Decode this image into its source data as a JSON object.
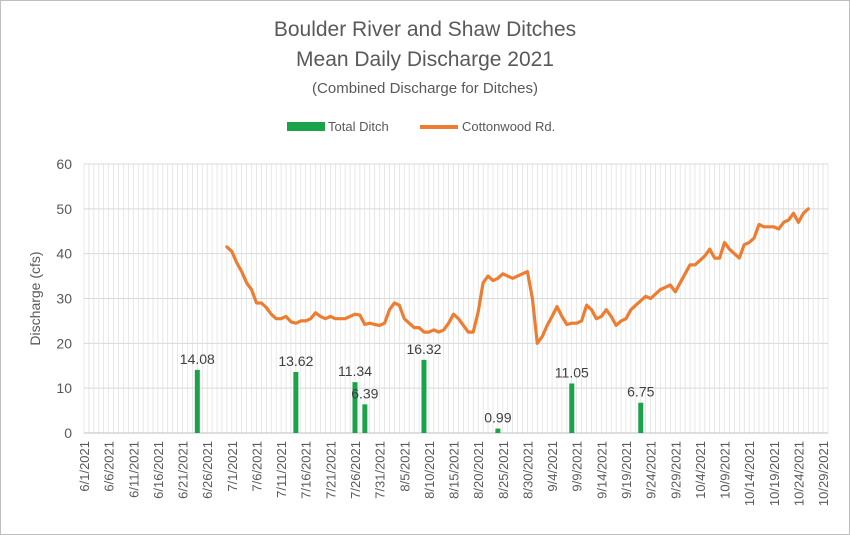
{
  "chart_data": {
    "type": "bar+line",
    "title": "Boulder River and Shaw Ditches",
    "subtitle": "Mean Daily Discharge 2021",
    "subtitle2": "(Combined Discharge for Ditches)",
    "ylabel": "Discharge (cfs)",
    "xlabel": "",
    "ylim": [
      0,
      60
    ],
    "yticks": [
      0,
      10,
      20,
      30,
      40,
      50,
      60
    ],
    "x_start": "6/1/2021",
    "x_end": "10/30/2021",
    "xtick_labels": [
      "6/1/2021",
      "6/6/2021",
      "6/11/2021",
      "6/16/2021",
      "6/21/2021",
      "6/26/2021",
      "7/1/2021",
      "7/6/2021",
      "7/11/2021",
      "7/16/2021",
      "7/21/2021",
      "7/26/2021",
      "7/31/2021",
      "8/5/2021",
      "8/10/2021",
      "8/15/2021",
      "8/20/2021",
      "8/25/2021",
      "8/30/2021",
      "9/4/2021",
      "9/9/2021",
      "9/14/2021",
      "9/19/2021",
      "9/24/2021",
      "9/29/2021",
      "10/4/2021",
      "10/9/2021",
      "10/14/2021",
      "10/19/2021",
      "10/24/2021",
      "10/29/2021"
    ],
    "grid": true,
    "legend_position": "top",
    "series": [
      {
        "name": "Total Ditch",
        "kind": "bar",
        "color": "#1aa34a",
        "points": [
          {
            "date": "6/24/2021",
            "value": 14.08,
            "label": "14.08"
          },
          {
            "date": "7/14/2021",
            "value": 13.62,
            "label": "13.62"
          },
          {
            "date": "7/26/2021",
            "value": 11.34,
            "label": "11.34"
          },
          {
            "date": "7/28/2021",
            "value": 6.39,
            "label": "6.39"
          },
          {
            "date": "8/9/2021",
            "value": 16.32,
            "label": "16.32"
          },
          {
            "date": "8/24/2021",
            "value": 0.99,
            "label": "0.99"
          },
          {
            "date": "9/8/2021",
            "value": 11.05,
            "label": "11.05"
          },
          {
            "date": "9/22/2021",
            "value": 6.75,
            "label": "6.75"
          }
        ]
      },
      {
        "name": "Cottonwood Rd.",
        "kind": "line",
        "color": "#ed7d31",
        "points": [
          {
            "date": "6/30/2021",
            "value": 41.5
          },
          {
            "date": "7/1/2021",
            "value": 40.5
          },
          {
            "date": "7/2/2021",
            "value": 38.0
          },
          {
            "date": "7/3/2021",
            "value": 36.0
          },
          {
            "date": "7/4/2021",
            "value": 33.5
          },
          {
            "date": "7/5/2021",
            "value": 32.0
          },
          {
            "date": "7/6/2021",
            "value": 29.0
          },
          {
            "date": "7/7/2021",
            "value": 29.0
          },
          {
            "date": "7/8/2021",
            "value": 28.0
          },
          {
            "date": "7/9/2021",
            "value": 26.5
          },
          {
            "date": "7/10/2021",
            "value": 25.5
          },
          {
            "date": "7/11/2021",
            "value": 25.5
          },
          {
            "date": "7/12/2021",
            "value": 26.0
          },
          {
            "date": "7/13/2021",
            "value": 24.8
          },
          {
            "date": "7/14/2021",
            "value": 24.5
          },
          {
            "date": "7/15/2021",
            "value": 25.0
          },
          {
            "date": "7/16/2021",
            "value": 25.0
          },
          {
            "date": "7/17/2021",
            "value": 25.5
          },
          {
            "date": "7/18/2021",
            "value": 26.8
          },
          {
            "date": "7/19/2021",
            "value": 26.0
          },
          {
            "date": "7/20/2021",
            "value": 25.5
          },
          {
            "date": "7/21/2021",
            "value": 26.0
          },
          {
            "date": "7/22/2021",
            "value": 25.5
          },
          {
            "date": "7/23/2021",
            "value": 25.5
          },
          {
            "date": "7/24/2021",
            "value": 25.5
          },
          {
            "date": "7/25/2021",
            "value": 26.0
          },
          {
            "date": "7/26/2021",
            "value": 26.5
          },
          {
            "date": "7/27/2021",
            "value": 26.3
          },
          {
            "date": "7/28/2021",
            "value": 24.2
          },
          {
            "date": "7/29/2021",
            "value": 24.5
          },
          {
            "date": "7/30/2021",
            "value": 24.2
          },
          {
            "date": "7/31/2021",
            "value": 24.0
          },
          {
            "date": "8/1/2021",
            "value": 24.5
          },
          {
            "date": "8/2/2021",
            "value": 27.5
          },
          {
            "date": "8/3/2021",
            "value": 29.0
          },
          {
            "date": "8/4/2021",
            "value": 28.5
          },
          {
            "date": "8/5/2021",
            "value": 25.5
          },
          {
            "date": "8/6/2021",
            "value": 24.5
          },
          {
            "date": "8/7/2021",
            "value": 23.5
          },
          {
            "date": "8/8/2021",
            "value": 23.5
          },
          {
            "date": "8/9/2021",
            "value": 22.5
          },
          {
            "date": "8/10/2021",
            "value": 22.5
          },
          {
            "date": "8/11/2021",
            "value": 23.0
          },
          {
            "date": "8/12/2021",
            "value": 22.5
          },
          {
            "date": "8/13/2021",
            "value": 23.0
          },
          {
            "date": "8/14/2021",
            "value": 24.5
          },
          {
            "date": "8/15/2021",
            "value": 26.5
          },
          {
            "date": "8/16/2021",
            "value": 25.5
          },
          {
            "date": "8/17/2021",
            "value": 24.0
          },
          {
            "date": "8/18/2021",
            "value": 22.5
          },
          {
            "date": "8/19/2021",
            "value": 22.5
          },
          {
            "date": "8/20/2021",
            "value": 27.0
          },
          {
            "date": "8/21/2021",
            "value": 33.5
          },
          {
            "date": "8/22/2021",
            "value": 35.0
          },
          {
            "date": "8/23/2021",
            "value": 34.0
          },
          {
            "date": "8/24/2021",
            "value": 34.5
          },
          {
            "date": "8/25/2021",
            "value": 35.5
          },
          {
            "date": "8/26/2021",
            "value": 35.0
          },
          {
            "date": "8/27/2021",
            "value": 34.5
          },
          {
            "date": "8/28/2021",
            "value": 35.0
          },
          {
            "date": "8/29/2021",
            "value": 35.5
          },
          {
            "date": "8/30/2021",
            "value": 36.0
          },
          {
            "date": "8/31/2021",
            "value": 30.0
          },
          {
            "date": "9/1/2021",
            "value": 20.0
          },
          {
            "date": "9/2/2021",
            "value": 21.5
          },
          {
            "date": "9/3/2021",
            "value": 24.0
          },
          {
            "date": "9/4/2021",
            "value": 26.0
          },
          {
            "date": "9/5/2021",
            "value": 28.2
          },
          {
            "date": "9/6/2021",
            "value": 26.0
          },
          {
            "date": "9/7/2021",
            "value": 24.2
          },
          {
            "date": "9/8/2021",
            "value": 24.5
          },
          {
            "date": "9/9/2021",
            "value": 24.5
          },
          {
            "date": "9/10/2021",
            "value": 25.0
          },
          {
            "date": "9/11/2021",
            "value": 28.5
          },
          {
            "date": "9/12/2021",
            "value": 27.5
          },
          {
            "date": "9/13/2021",
            "value": 25.5
          },
          {
            "date": "9/14/2021",
            "value": 26.0
          },
          {
            "date": "9/15/2021",
            "value": 27.5
          },
          {
            "date": "9/16/2021",
            "value": 26.0
          },
          {
            "date": "9/17/2021",
            "value": 24.0
          },
          {
            "date": "9/18/2021",
            "value": 25.0
          },
          {
            "date": "9/19/2021",
            "value": 25.5
          },
          {
            "date": "9/20/2021",
            "value": 27.5
          },
          {
            "date": "9/21/2021",
            "value": 28.5
          },
          {
            "date": "9/22/2021",
            "value": 29.5
          },
          {
            "date": "9/23/2021",
            "value": 30.5
          },
          {
            "date": "9/24/2021",
            "value": 30.0
          },
          {
            "date": "9/25/2021",
            "value": 31.0
          },
          {
            "date": "9/26/2021",
            "value": 32.0
          },
          {
            "date": "9/27/2021",
            "value": 32.5
          },
          {
            "date": "9/28/2021",
            "value": 33.0
          },
          {
            "date": "9/29/2021",
            "value": 31.5
          },
          {
            "date": "9/30/2021",
            "value": 33.5
          },
          {
            "date": "10/1/2021",
            "value": 35.5
          },
          {
            "date": "10/2/2021",
            "value": 37.5
          },
          {
            "date": "10/3/2021",
            "value": 37.5
          },
          {
            "date": "10/4/2021",
            "value": 38.5
          },
          {
            "date": "10/5/2021",
            "value": 39.5
          },
          {
            "date": "10/6/2021",
            "value": 41.0
          },
          {
            "date": "10/7/2021",
            "value": 39.0
          },
          {
            "date": "10/8/2021",
            "value": 39.0
          },
          {
            "date": "10/9/2021",
            "value": 42.5
          },
          {
            "date": "10/10/2021",
            "value": 41.0
          },
          {
            "date": "10/11/2021",
            "value": 40.0
          },
          {
            "date": "10/12/2021",
            "value": 39.0
          },
          {
            "date": "10/13/2021",
            "value": 42.0
          },
          {
            "date": "10/14/2021",
            "value": 42.5
          },
          {
            "date": "10/15/2021",
            "value": 43.5
          },
          {
            "date": "10/16/2021",
            "value": 46.5
          },
          {
            "date": "10/17/2021",
            "value": 46.0
          },
          {
            "date": "10/18/2021",
            "value": 46.0
          },
          {
            "date": "10/19/2021",
            "value": 46.0
          },
          {
            "date": "10/20/2021",
            "value": 45.5
          },
          {
            "date": "10/21/2021",
            "value": 47.0
          },
          {
            "date": "10/22/2021",
            "value": 47.5
          },
          {
            "date": "10/23/2021",
            "value": 49.0
          },
          {
            "date": "10/24/2021",
            "value": 47.0
          },
          {
            "date": "10/25/2021",
            "value": 49.0
          },
          {
            "date": "10/26/2021",
            "value": 50.0
          }
        ]
      }
    ]
  }
}
